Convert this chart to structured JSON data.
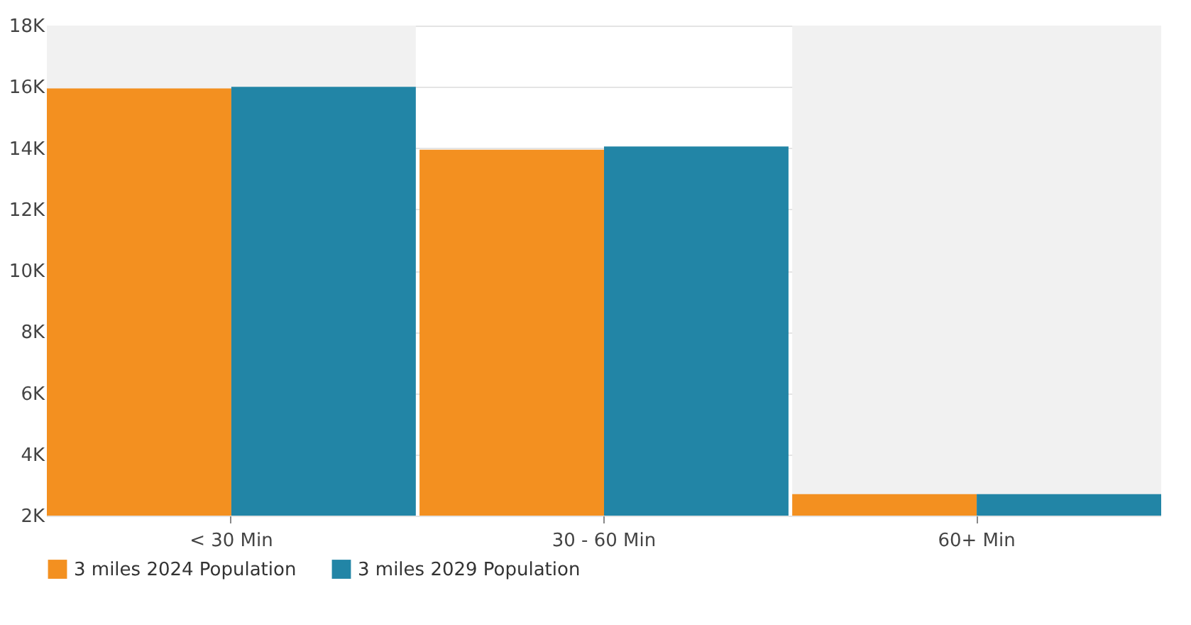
{
  "chart_data": {
    "type": "bar",
    "categories": [
      "< 30 Min",
      "30 - 60 Min",
      "60+ Min"
    ],
    "series": [
      {
        "name": "3 miles 2024 Population",
        "color": "#f39020",
        "values": [
          15950,
          13950,
          2700
        ]
      },
      {
        "name": "3 miles 2029 Population",
        "color": "#2285a6",
        "values": [
          16000,
          14050,
          2700
        ]
      }
    ],
    "ylim": [
      2000,
      18000
    ],
    "yticks": [
      {
        "value": 2000,
        "label": "2K"
      },
      {
        "value": 4000,
        "label": "4K"
      },
      {
        "value": 6000,
        "label": "6K"
      },
      {
        "value": 8000,
        "label": "8K"
      },
      {
        "value": 10000,
        "label": "10K"
      },
      {
        "value": 12000,
        "label": "12K"
      },
      {
        "value": 14000,
        "label": "14K"
      },
      {
        "value": 16000,
        "label": "16K"
      },
      {
        "value": 18000,
        "label": "18K"
      }
    ],
    "bands": [
      {
        "axis": "x",
        "from": "< 30 Min",
        "to": "< 30 Min",
        "color": "#f1f1f1"
      },
      {
        "axis": "x",
        "from": "60+ Min",
        "to": "60+ Min",
        "color": "#f1f1f1"
      }
    ],
    "grid": "y",
    "legend": "bottom"
  }
}
